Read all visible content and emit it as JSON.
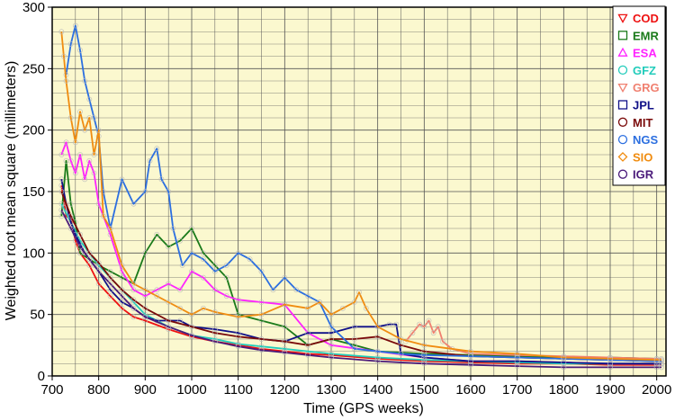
{
  "chart_data": {
    "type": "line",
    "xlabel": "Time (GPS weeks)",
    "ylabel": "Weighted root mean square (millimeters)",
    "xlim": [
      700,
      2020
    ],
    "ylim": [
      0,
      300
    ],
    "x_ticks": [
      700,
      800,
      900,
      1000,
      1100,
      1200,
      1300,
      1400,
      1500,
      1600,
      1700,
      1800,
      1900,
      2000
    ],
    "y_ticks": [
      0,
      50,
      100,
      150,
      200,
      250,
      300
    ],
    "grid": true,
    "background_color": "#fbf8cf",
    "legend_position": "top-right",
    "series": [
      {
        "name": "COD",
        "color": "#ee1111",
        "marker": "triangle-down",
        "x": [
          720,
          730,
          740,
          750,
          760,
          780,
          800,
          825,
          850,
          875,
          900,
          950,
          1000,
          1050,
          1100,
          1150,
          1200,
          1250,
          1300,
          1400,
          1500,
          1600,
          1700,
          1800,
          1900,
          2000,
          2010
        ],
        "y": [
          155,
          130,
          128,
          110,
          100,
          90,
          75,
          65,
          55,
          48,
          45,
          38,
          32,
          28,
          25,
          22,
          20,
          18,
          17,
          14,
          12,
          11,
          10,
          10,
          9,
          9,
          9
        ]
      },
      {
        "name": "EMR",
        "color": "#1a7a1a",
        "marker": "square",
        "x": [
          720,
          730,
          740,
          750,
          760,
          780,
          800,
          825,
          850,
          875,
          900,
          925,
          950,
          975,
          1000,
          1025,
          1050,
          1075,
          1100,
          1150,
          1200,
          1250,
          1300,
          1350,
          1400,
          1500,
          1600,
          1700,
          1800,
          1900,
          2000,
          2010
        ],
        "y": [
          130,
          175,
          140,
          125,
          100,
          95,
          90,
          85,
          80,
          75,
          100,
          115,
          105,
          110,
          120,
          100,
          90,
          80,
          50,
          45,
          40,
          25,
          30,
          25,
          20,
          18,
          17,
          16,
          15,
          15,
          14,
          13
        ]
      },
      {
        "name": "ESA",
        "color": "#ff22ff",
        "marker": "triangle-up",
        "x": [
          720,
          730,
          740,
          750,
          760,
          770,
          780,
          790,
          800,
          825,
          850,
          875,
          900,
          925,
          950,
          975,
          1000,
          1025,
          1050,
          1075,
          1100,
          1150,
          1200,
          1250,
          1300,
          1400,
          1500,
          1600,
          1700,
          1800,
          1900,
          2000,
          2010
        ],
        "y": [
          180,
          190,
          175,
          165,
          180,
          160,
          175,
          165,
          140,
          115,
          85,
          70,
          65,
          70,
          75,
          70,
          85,
          80,
          70,
          65,
          62,
          60,
          58,
          35,
          25,
          20,
          15,
          12,
          12,
          11,
          10,
          10,
          10
        ]
      },
      {
        "name": "GFZ",
        "color": "#22ccbb",
        "marker": "circle",
        "x": [
          720,
          740,
          760,
          780,
          800,
          825,
          850,
          875,
          900,
          950,
          1000,
          1050,
          1100,
          1150,
          1200,
          1300,
          1400,
          1500,
          1600,
          1700,
          1800,
          1900,
          2000,
          2010
        ],
        "y": [
          140,
          125,
          110,
          100,
          90,
          80,
          70,
          60,
          50,
          40,
          33,
          30,
          26,
          24,
          22,
          18,
          15,
          13,
          12,
          11,
          10,
          10,
          10,
          10
        ]
      },
      {
        "name": "GRG",
        "color": "#f08070",
        "marker": "triangle-down",
        "x": [
          1460,
          1475,
          1490,
          1500,
          1510,
          1520,
          1530,
          1540,
          1560,
          1600,
          1700,
          1800,
          1900,
          2000,
          2010
        ],
        "y": [
          28,
          35,
          42,
          40,
          45,
          35,
          40,
          28,
          22,
          18,
          17,
          16,
          15,
          14,
          14
        ]
      },
      {
        "name": "JPL",
        "color": "#101088",
        "marker": "square",
        "x": [
          720,
          730,
          740,
          750,
          770,
          790,
          800,
          825,
          850,
          875,
          900,
          925,
          950,
          975,
          1000,
          1050,
          1100,
          1150,
          1200,
          1250,
          1300,
          1350,
          1400,
          1425,
          1440,
          1450,
          1500,
          1600,
          1700,
          1800,
          1900,
          2000,
          2010
        ],
        "y": [
          160,
          140,
          125,
          115,
          100,
          90,
          85,
          70,
          60,
          55,
          48,
          45,
          45,
          45,
          40,
          38,
          35,
          30,
          28,
          35,
          35,
          40,
          40,
          42,
          42,
          18,
          15,
          12,
          12,
          11,
          10,
          10,
          10
        ]
      },
      {
        "name": "MIT",
        "color": "#7a0a0a",
        "marker": "circle",
        "x": [
          720,
          740,
          760,
          780,
          800,
          825,
          850,
          875,
          900,
          950,
          1000,
          1050,
          1100,
          1150,
          1200,
          1250,
          1300,
          1350,
          1400,
          1450,
          1500,
          1600,
          1700,
          1800,
          1900,
          2000,
          2010
        ],
        "y": [
          150,
          130,
          115,
          100,
          92,
          80,
          70,
          62,
          55,
          45,
          40,
          35,
          32,
          30,
          28,
          25,
          30,
          30,
          32,
          25,
          20,
          16,
          15,
          14,
          13,
          12,
          12
        ]
      },
      {
        "name": "NGS",
        "color": "#2c6fe0",
        "marker": "circle",
        "x": [
          730,
          740,
          750,
          760,
          770,
          780,
          790,
          800,
          810,
          825,
          850,
          875,
          900,
          910,
          925,
          935,
          950,
          960,
          980,
          1000,
          1025,
          1050,
          1075,
          1100,
          1125,
          1150,
          1175,
          1200,
          1225,
          1250,
          1275,
          1300,
          1350,
          1400,
          1450,
          1500,
          1600,
          1700,
          1800,
          1900,
          2000,
          2010
        ],
        "y": [
          245,
          270,
          285,
          265,
          240,
          225,
          210,
          195,
          150,
          120,
          160,
          140,
          150,
          175,
          185,
          160,
          150,
          120,
          90,
          100,
          95,
          85,
          90,
          100,
          95,
          85,
          70,
          80,
          70,
          65,
          60,
          40,
          22,
          20,
          18,
          17,
          16,
          15,
          14,
          13,
          12,
          12
        ]
      },
      {
        "name": "SIO",
        "color": "#f08c10",
        "marker": "diamond",
        "x": [
          720,
          725,
          730,
          740,
          750,
          760,
          770,
          780,
          790,
          800,
          810,
          825,
          850,
          875,
          900,
          925,
          950,
          975,
          1000,
          1025,
          1050,
          1100,
          1150,
          1200,
          1250,
          1275,
          1300,
          1325,
          1350,
          1360,
          1375,
          1400,
          1450,
          1500,
          1600,
          1700,
          1800,
          1900,
          2000,
          2010
        ],
        "y": [
          280,
          260,
          240,
          210,
          190,
          215,
          200,
          210,
          180,
          200,
          130,
          120,
          90,
          75,
          70,
          65,
          60,
          55,
          50,
          55,
          52,
          48,
          50,
          58,
          55,
          60,
          50,
          55,
          60,
          68,
          55,
          40,
          30,
          25,
          20,
          18,
          15,
          14,
          13,
          13
        ]
      },
      {
        "name": "IGR",
        "color": "#4a1a7a",
        "marker": "circle",
        "x": [
          720,
          740,
          760,
          780,
          800,
          825,
          850,
          875,
          900,
          950,
          1000,
          1050,
          1100,
          1150,
          1200,
          1250,
          1300,
          1400,
          1500,
          1600,
          1700,
          1800,
          1900,
          2000,
          2010
        ],
        "y": [
          135,
          120,
          105,
          95,
          85,
          75,
          65,
          55,
          48,
          40,
          33,
          28,
          24,
          21,
          19,
          17,
          15,
          12,
          10,
          9,
          8,
          7,
          7,
          7,
          7
        ]
      }
    ]
  }
}
